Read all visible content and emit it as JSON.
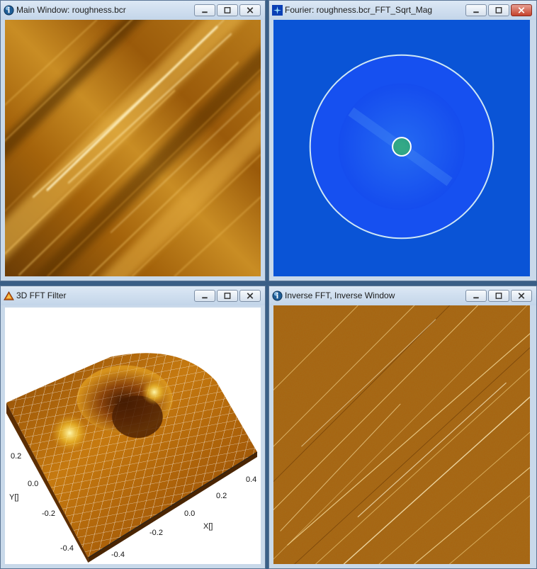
{
  "windows": {
    "main": {
      "title": "Main Window: roughness.bcr"
    },
    "fourier": {
      "title": "Fourier: roughness.bcr_FFT_Sqrt_Mag"
    },
    "filter": {
      "title": "3D FFT Filter"
    },
    "inverse": {
      "title": "Inverse FFT, Inverse Window"
    }
  },
  "plot3d": {
    "y_axis_label": "Y[]",
    "x_axis_label": "X[]",
    "y_ticks": [
      "0.2",
      "0.0",
      "-0.2",
      "-0.4"
    ],
    "x_ticks": [
      "0.4",
      "0.2",
      "0.0",
      "-0.2",
      "-0.4"
    ]
  },
  "icons": {
    "app": "info-globe-icon",
    "fourier": "fft-star-icon",
    "filter": "3d-chart-icon"
  },
  "colors": {
    "afm_dark": "#6b3c05",
    "afm_light": "#f6d37a",
    "fft_blue": "#0a54d6",
    "inverse_base": "#a8620e"
  }
}
